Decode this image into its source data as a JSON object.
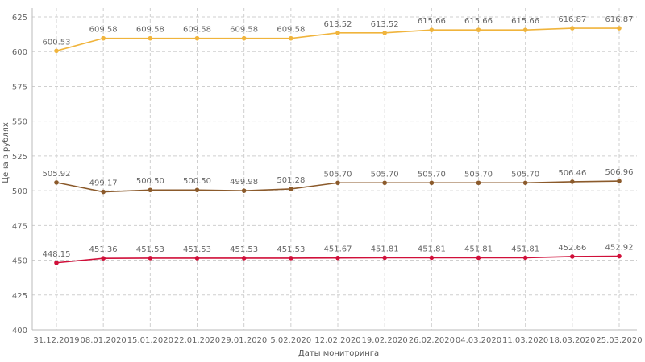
{
  "chart_data": {
    "type": "line",
    "title": "",
    "xlabel": "Даты мониторинга",
    "ylabel": "Цена в рублях",
    "ylim": [
      400,
      625
    ],
    "yticks": [
      400,
      425,
      450,
      475,
      500,
      525,
      550,
      575,
      600,
      625
    ],
    "grid": true,
    "categories": [
      "31.12.2019",
      "08.01.2020",
      "15.01.2020",
      "22.01.2020",
      "29.01.2020",
      "5.02.2020",
      "12.02.2020",
      "19.02.2020",
      "26.02.2020",
      "04.03.2020",
      "11.03.2020",
      "18.03.2020",
      "25.03.2020"
    ],
    "series": [
      {
        "color": "#f0b43c",
        "values": [
          600.53,
          609.58,
          609.58,
          609.58,
          609.58,
          609.58,
          613.52,
          613.52,
          615.66,
          615.66,
          615.66,
          616.87,
          616.87
        ],
        "labels": [
          "600.53",
          "609.58",
          "609.58",
          "609.58",
          "609.58",
          "609.58",
          "613.52",
          "613.52",
          "615.66",
          "615.66",
          "615.66",
          "616.87",
          "616.87"
        ]
      },
      {
        "color": "#8b5a2b",
        "values": [
          505.92,
          499.17,
          500.5,
          500.5,
          499.98,
          501.28,
          505.7,
          505.7,
          505.7,
          505.7,
          505.7,
          506.46,
          506.96
        ],
        "labels": [
          "505.92",
          "499.17",
          "500.50",
          "500.50",
          "499.98",
          "501.28",
          "505.70",
          "505.70",
          "505.70",
          "505.70",
          "505.70",
          "506.46",
          "506.96"
        ]
      },
      {
        "color": "#d0103a",
        "values": [
          448.15,
          451.36,
          451.53,
          451.53,
          451.53,
          451.53,
          451.67,
          451.81,
          451.81,
          451.81,
          451.81,
          452.66,
          452.92
        ],
        "labels": [
          "448.15",
          "451.36",
          "451.53",
          "451.53",
          "451.53",
          "451.53",
          "451.67",
          "451.81",
          "451.81",
          "451.81",
          "451.81",
          "452.66",
          "452.92"
        ]
      }
    ]
  }
}
